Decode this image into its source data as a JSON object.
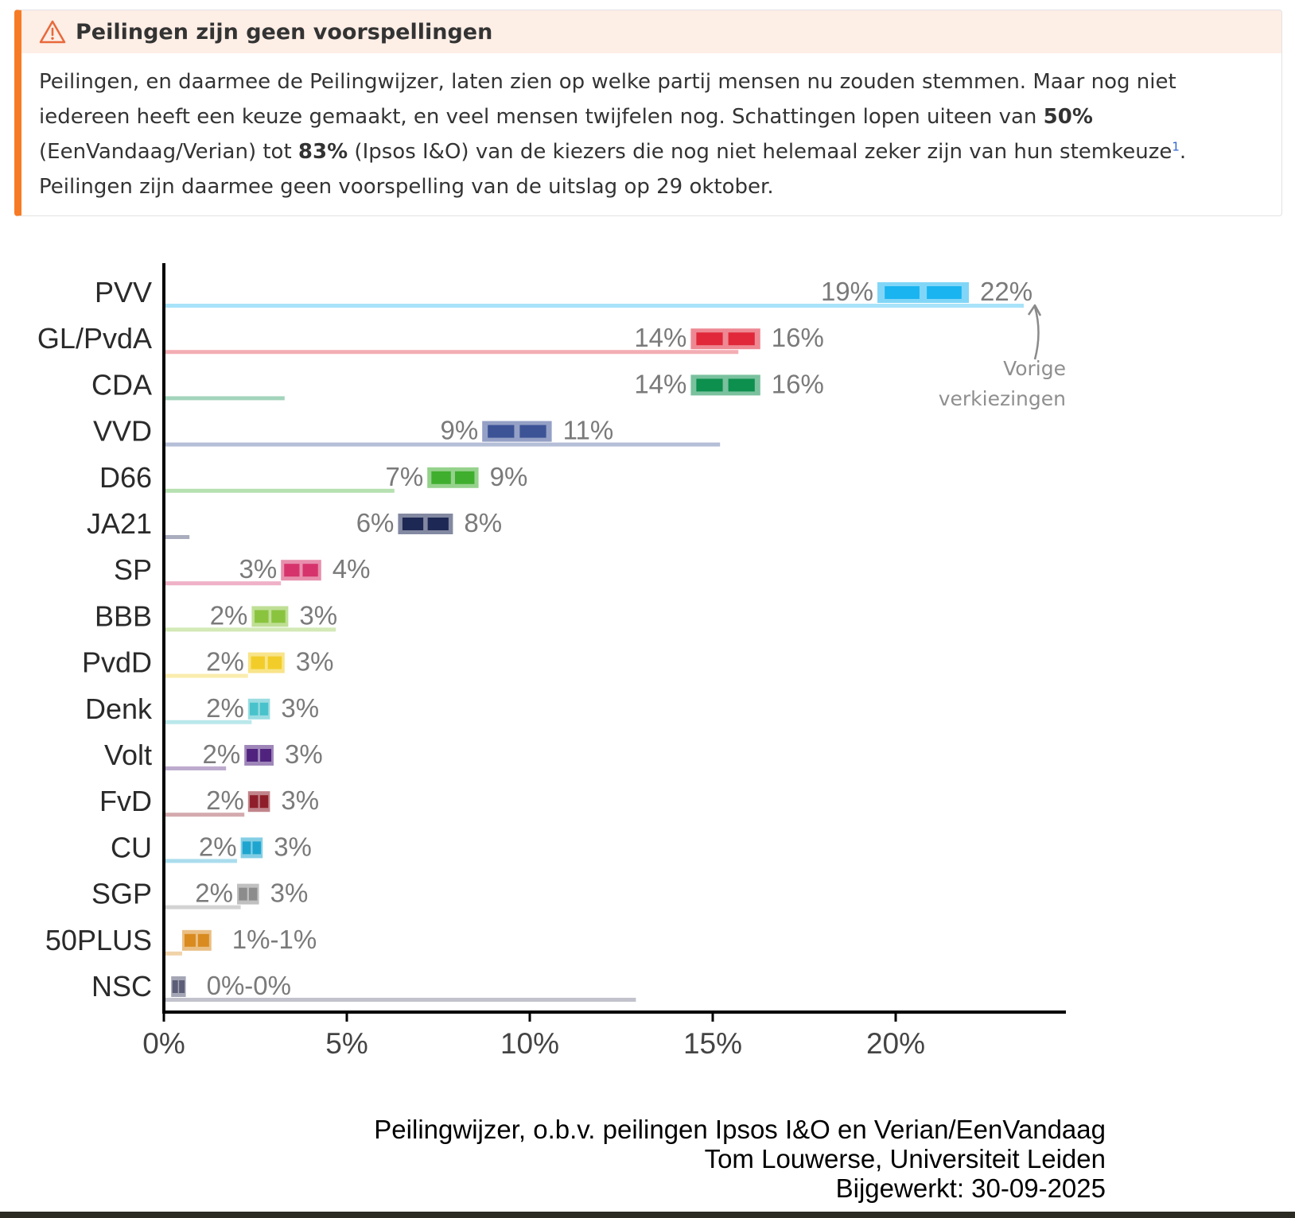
{
  "notice": {
    "icon": "warning-triangle-icon",
    "accent_color": "#f77b24",
    "title": "Peilingen zijn geen voorspellingen",
    "text_1": "Peilingen, en daarmee de Peilingwijzer, laten zien op welke partij mensen nu zouden stemmen. Maar nog niet iedereen heeft een keuze gemaakt, en veel mensen twijfelen nog. Schattingen lopen uiteen van ",
    "bold_1": "50%",
    "text_2": " (EenVandaag/Verian) tot ",
    "bold_2": "83%",
    "text_3": " (Ipsos I&O) van de kiezers die nog niet helemaal zeker zijn van hun stemkeuze",
    "footnote": "1",
    "text_4": ". Peilingen zijn daarmee geen voorspelling van de uitslag op 29 oktober."
  },
  "chart_data": {
    "type": "bar",
    "xlim": [
      0,
      24.6
    ],
    "x_ticks": [
      0,
      5,
      10,
      15,
      20
    ],
    "x_tick_labels": [
      "0%",
      "5%",
      "10%",
      "15%",
      "20%"
    ],
    "annotation": [
      "Vorige",
      "verkiezingen"
    ],
    "parties": [
      {
        "name": "PVV",
        "low": 19.5,
        "high": 22.0,
        "low_label": "19%",
        "high_label": "22%",
        "previous": 23.5,
        "color": "#1ab4f0"
      },
      {
        "name": "GL/PvdA",
        "low": 14.4,
        "high": 16.3,
        "low_label": "14%",
        "high_label": "16%",
        "previous": 15.7,
        "color": "#e0283a"
      },
      {
        "name": "CDA",
        "low": 14.4,
        "high": 16.3,
        "low_label": "14%",
        "high_label": "16%",
        "previous": 3.3,
        "color": "#0d8f4e"
      },
      {
        "name": "VVD",
        "low": 8.7,
        "high": 10.6,
        "low_label": "9%",
        "high_label": "11%",
        "previous": 15.2,
        "color": "#3c5396"
      },
      {
        "name": "D66",
        "low": 7.2,
        "high": 8.6,
        "low_label": "7%",
        "high_label": "9%",
        "previous": 6.3,
        "color": "#3fae2e"
      },
      {
        "name": "JA21",
        "low": 6.4,
        "high": 7.9,
        "low_label": "6%",
        "high_label": "8%",
        "previous": 0.7,
        "color": "#1d2854"
      },
      {
        "name": "SP",
        "low": 3.2,
        "high": 4.3,
        "low_label": "3%",
        "high_label": "4%",
        "previous": 3.2,
        "color": "#d6336c"
      },
      {
        "name": "BBB",
        "low": 2.4,
        "high": 3.4,
        "low_label": "2%",
        "high_label": "3%",
        "previous": 4.7,
        "color": "#8ac43f"
      },
      {
        "name": "PvdD",
        "low": 2.3,
        "high": 3.3,
        "low_label": "2%",
        "high_label": "3%",
        "previous": 2.3,
        "color": "#f2cd29"
      },
      {
        "name": "Denk",
        "low": 2.3,
        "high": 2.9,
        "low_label": "2%",
        "high_label": "3%",
        "previous": 2.4,
        "color": "#49c2cb"
      },
      {
        "name": "Volt",
        "low": 2.2,
        "high": 3.0,
        "low_label": "2%",
        "high_label": "3%",
        "previous": 1.7,
        "color": "#50237f"
      },
      {
        "name": "FvD",
        "low": 2.3,
        "high": 2.9,
        "low_label": "2%",
        "high_label": "3%",
        "previous": 2.2,
        "color": "#8e1f2a"
      },
      {
        "name": "CU",
        "low": 2.1,
        "high": 2.7,
        "low_label": "2%",
        "high_label": "3%",
        "previous": 2.0,
        "color": "#1ea5cf"
      },
      {
        "name": "SGP",
        "low": 2.0,
        "high": 2.6,
        "low_label": "2%",
        "high_label": "3%",
        "previous": 2.1,
        "color": "#8c8c8c"
      },
      {
        "name": "50PLUS",
        "low": 0.5,
        "high": 1.3,
        "low_label": "",
        "high_label": "1%-1%",
        "previous": 0.5,
        "color": "#d98b1f"
      },
      {
        "name": "NSC",
        "low": 0.2,
        "high": 0.6,
        "low_label": "",
        "high_label": "0%-0%",
        "previous": 12.9,
        "color": "#5c5e78"
      }
    ]
  },
  "credits": {
    "line_1": "Peilingwijzer, o.b.v. peilingen Ipsos I&O en Verian/EenVandaag",
    "line_2": "Tom Louwerse, Universiteit Leiden",
    "line_3": "Bijgewerkt: 30-09-2025"
  }
}
